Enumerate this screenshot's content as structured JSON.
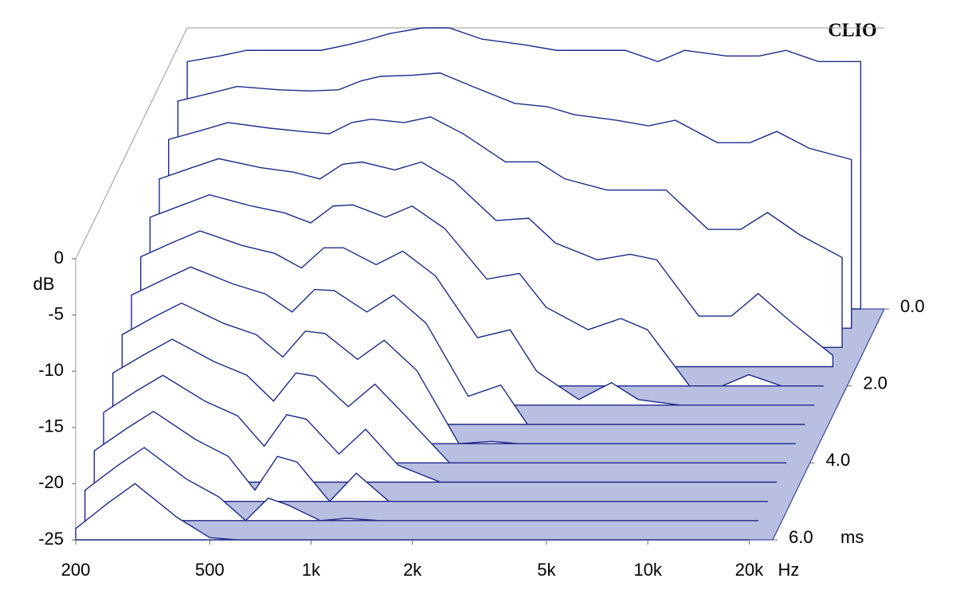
{
  "chart_data": {
    "type": "waterfall",
    "watermark": "CLIO",
    "color": "#1c2a8a",
    "ylabel": "dB",
    "xlabel": "Hz",
    "zlabel": "ms",
    "x": [
      200,
      250,
      300,
      400,
      500,
      600,
      700,
      800,
      1000,
      1200,
      1500,
      2000,
      2500,
      3000,
      4000,
      5000,
      6000,
      8000,
      10000,
      12000,
      15000,
      20000
    ],
    "z": [
      0,
      0.5,
      1,
      1.5,
      2,
      2.5,
      3,
      3.5,
      4,
      4.5,
      5,
      5.5,
      6
    ],
    "slices": [
      [
        -3,
        -2.5,
        -2,
        -2,
        -2,
        -1.5,
        -1,
        -0.5,
        0,
        0,
        -1,
        -1.5,
        -2,
        -2,
        -2,
        -3,
        -2,
        -2.5,
        -2.5,
        -2,
        -3,
        -3
      ],
      [
        -4.8,
        -4.1,
        -3.5,
        -3.8,
        -3.9,
        -3.8,
        -3,
        -2.6,
        -2.5,
        -2.3,
        -3.5,
        -5,
        -5.3,
        -6,
        -6.5,
        -7,
        -6.5,
        -8.5,
        -8.5,
        -7.5,
        -9,
        -10
      ],
      [
        -6.5,
        -5.7,
        -5,
        -5.5,
        -5.8,
        -6,
        -5,
        -4.7,
        -5,
        -4.5,
        -6,
        -8.5,
        -8.5,
        -10,
        -11,
        -11,
        -11,
        -14.5,
        -14.5,
        -13,
        -15,
        -17
      ],
      [
        -8.3,
        -7.3,
        -6.5,
        -7.3,
        -7.7,
        -8.3,
        -7,
        -6.8,
        -7.5,
        -6.8,
        -8.5,
        -12,
        -11.8,
        -14,
        -15.5,
        -15,
        -15.5,
        -20.5,
        -20.5,
        -18.5,
        -21,
        -24
      ],
      [
        -10,
        -8.9,
        -8,
        -9,
        -9.6,
        -10.5,
        -9,
        -8.9,
        -10,
        -9,
        -11,
        -15.5,
        -15,
        -18,
        -20,
        -19,
        -20,
        -25,
        -25,
        -24,
        -25,
        -25
      ],
      [
        -11.8,
        -10.5,
        -9.5,
        -10.8,
        -11.5,
        -12.8,
        -11,
        -11,
        -12.5,
        -11.3,
        -13.5,
        -19,
        -18.3,
        -22,
        -24.5,
        -23,
        -24.5,
        -25,
        -25,
        -25,
        -25,
        -25
      ],
      [
        -13.5,
        -12.1,
        -11,
        -12.5,
        -13.4,
        -15,
        -13,
        -13.1,
        -15,
        -13.5,
        -16,
        -22.5,
        -21.5,
        -25,
        -25,
        -25,
        -25,
        -25,
        -25,
        -25,
        -25,
        -25
      ],
      [
        -15.3,
        -13.7,
        -12.5,
        -14.3,
        -15.3,
        -17.3,
        -15,
        -15.2,
        -17.5,
        -15.8,
        -18.5,
        -25,
        -24.8,
        -25,
        -25,
        -25,
        -25,
        -25,
        -25,
        -25,
        -25,
        -25
      ],
      [
        -17,
        -15.3,
        -14,
        -16,
        -17.2,
        -19.5,
        -17,
        -17.3,
        -20,
        -18,
        -21,
        -25,
        -25,
        -25,
        -25,
        -25,
        -25,
        -25,
        -25,
        -25,
        -25,
        -25
      ],
      [
        -18.8,
        -16.9,
        -15.5,
        -17.8,
        -19.1,
        -21.8,
        -19,
        -19.4,
        -22.5,
        -20.3,
        -23.5,
        -25,
        -25,
        -25,
        -25,
        -25,
        -25,
        -25,
        -25,
        -25,
        -25,
        -25
      ],
      [
        -20.5,
        -18.5,
        -17,
        -19.5,
        -21,
        -24,
        -21,
        -21.5,
        -25,
        -22.5,
        -25,
        -25,
        -25,
        -25,
        -25,
        -25,
        -25,
        -25,
        -25,
        -25,
        -25,
        -25
      ],
      [
        -22.3,
        -20.1,
        -18.5,
        -21.3,
        -22.9,
        -25,
        -23,
        -23.6,
        -25,
        -24.8,
        -25,
        -25,
        -25,
        -25,
        -25,
        -25,
        -25,
        -25,
        -25,
        -25,
        -25,
        -25
      ],
      [
        -24,
        -21.7,
        -20,
        -23,
        -24.8,
        -25,
        -25,
        -25,
        -25,
        -25,
        -25,
        -25,
        -25,
        -25,
        -25,
        -25,
        -25,
        -25,
        -25,
        -25,
        -25,
        -25
      ]
    ],
    "xlim": [
      200,
      23500
    ],
    "log_x": true,
    "xticks": [
      200,
      500,
      {
        "value": 1000,
        "label": "1k"
      },
      {
        "value": 2000,
        "label": "2k"
      },
      {
        "value": 5000,
        "label": "5k"
      },
      {
        "value": 10000,
        "label": "10k"
      },
      {
        "value": 20000,
        "label": "20k"
      }
    ],
    "ylim": [
      -25,
      0
    ],
    "yticks": [
      0,
      -5,
      -10,
      -15,
      -20,
      -25
    ],
    "zlim": [
      0,
      6
    ],
    "zticks": [
      {
        "value": 0,
        "label": "0.0"
      },
      {
        "value": 2,
        "label": "2.0"
      },
      {
        "value": 4,
        "label": "4.0"
      },
      {
        "value": 6,
        "label": "6.0"
      }
    ]
  }
}
